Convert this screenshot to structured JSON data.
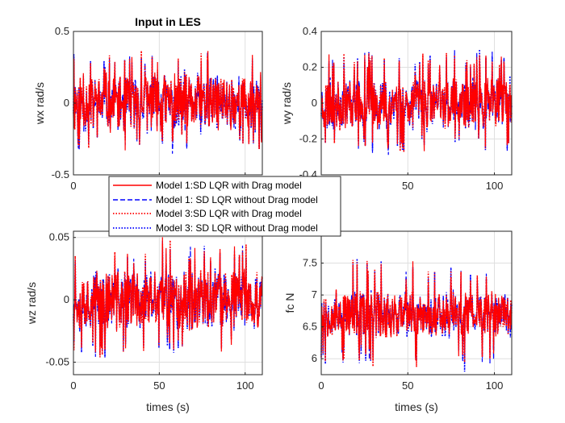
{
  "chart_data": [
    {
      "type": "line",
      "title": "Input in LES",
      "xlabel": "",
      "ylabel": "wx rad/s",
      "xlim": [
        0,
        110
      ],
      "ylim": [
        -0.5,
        0.5
      ],
      "xticks": [
        0,
        50,
        100
      ],
      "yticks": [
        -0.5,
        0,
        0.5
      ],
      "yticklabels": [
        "-0.5",
        "0",
        "0.5"
      ],
      "grid": true,
      "signal": {
        "amplitude": 0.17,
        "spike": 0.32,
        "seed": 11
      }
    },
    {
      "type": "line",
      "title": "",
      "xlabel": "",
      "ylabel": "wy rad/s",
      "xlim": [
        0,
        110
      ],
      "ylim": [
        -0.4,
        0.4
      ],
      "xticks": [
        0,
        50,
        100
      ],
      "yticks": [
        -0.4,
        -0.2,
        0,
        0.2,
        0.4
      ],
      "yticklabels": [
        "-0.4",
        "-0.2",
        "0",
        "0.2",
        "0.4"
      ],
      "grid": true,
      "signal": {
        "amplitude": 0.12,
        "spike": 0.26,
        "seed": 23
      }
    },
    {
      "type": "line",
      "title": "",
      "xlabel": "times (s)",
      "ylabel": "wz rad/s",
      "xlim": [
        0,
        110
      ],
      "ylim": [
        -0.06,
        0.055
      ],
      "xticks": [
        0,
        50,
        100
      ],
      "yticks": [
        -0.05,
        0,
        0.05
      ],
      "yticklabels": [
        "-0.05",
        "0",
        "0.05"
      ],
      "grid": true,
      "signal": {
        "amplitude": 0.02,
        "spike": 0.042,
        "seed": 37
      }
    },
    {
      "type": "line",
      "title": "",
      "xlabel": "times (s)",
      "ylabel": "fc N",
      "xlim": [
        0,
        110
      ],
      "ylim": [
        5.75,
        8
      ],
      "baseline": 6.7,
      "xticks": [
        0,
        50,
        100
      ],
      "yticks": [
        6,
        6.5,
        7,
        7.5,
        8
      ],
      "yticklabels": [
        "6",
        "6.5",
        "7",
        "7.5",
        "8"
      ],
      "grid": true,
      "signal": {
        "amplitude": 0.3,
        "spike": 0.75,
        "seed": 53
      }
    }
  ],
  "legend": {
    "placement": "center",
    "items": [
      {
        "label": "Model 1:SD LQR with Drag model",
        "color": "#ff0000",
        "style": "solid"
      },
      {
        "label": "Model 1: SD LQR without Drag model",
        "color": "#0000ff",
        "style": "dashed"
      },
      {
        "label": "Model 3:SD LQR with Drag model",
        "color": "#ff0000",
        "style": "dotted"
      },
      {
        "label": "Model 3: SD LQR without Drag model",
        "color": "#0000ff",
        "style": "dotted"
      }
    ]
  }
}
